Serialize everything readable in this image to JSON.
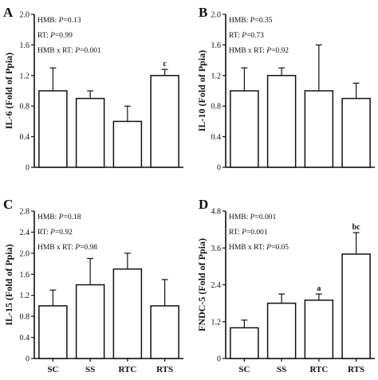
{
  "figure": {
    "x_categories": [
      "SC",
      "SS",
      "RTC",
      "RTS"
    ]
  },
  "chart_data": [
    {
      "type": "bar",
      "panel": "A",
      "ylabel": "IL-6 (Fold of Ppia)",
      "categories": [
        "SC",
        "SS",
        "RTC",
        "RTS"
      ],
      "values": [
        1.0,
        0.9,
        0.6,
        1.2
      ],
      "errors": [
        0.3,
        0.1,
        0.2,
        0.08
      ],
      "sig_labels": [
        "",
        "",
        "",
        "c"
      ],
      "ylim": [
        0,
        2.0
      ],
      "yticks": [
        "0",
        "0.4",
        "0.8",
        "1.2",
        "1.6",
        "2.0"
      ],
      "stats": [
        {
          "prefix": "HMB: ",
          "p": "P",
          "rest": "=0.13"
        },
        {
          "prefix": "RT: ",
          "p": "P",
          "rest": "=0.99"
        },
        {
          "prefix": "HMB x RT: ",
          "p": "P",
          "rest": "=0.001"
        }
      ],
      "show_xlabels": false
    },
    {
      "type": "bar",
      "panel": "B",
      "ylabel": "IL-10 (Fold of Ppia)",
      "categories": [
        "SC",
        "SS",
        "RTC",
        "RTS"
      ],
      "values": [
        1.0,
        1.2,
        1.0,
        0.9
      ],
      "errors": [
        0.3,
        0.1,
        0.6,
        0.2
      ],
      "sig_labels": [
        "",
        "",
        "",
        ""
      ],
      "ylim": [
        0,
        2.0
      ],
      "yticks": [
        "0",
        "0.4",
        "0.8",
        "1.2",
        "1.6",
        "2.0"
      ],
      "stats": [
        {
          "prefix": "HMB: ",
          "p": "P",
          "rest": "=0.35"
        },
        {
          "prefix": "RT: ",
          "p": "P",
          "rest": "=0.73"
        },
        {
          "prefix": "HMB x RT: ",
          "p": "P",
          "rest": "=0.92"
        }
      ],
      "show_xlabels": false
    },
    {
      "type": "bar",
      "panel": "C",
      "ylabel": "IL-15 (Fold of Ppia)",
      "categories": [
        "SC",
        "SS",
        "RTC",
        "RTS"
      ],
      "values": [
        1.0,
        1.4,
        1.7,
        1.0
      ],
      "errors": [
        0.3,
        0.5,
        0.3,
        0.5
      ],
      "sig_labels": [
        "",
        "",
        "",
        ""
      ],
      "ylim": [
        0,
        2.8
      ],
      "yticks": [
        "0",
        "0.4",
        "0.8",
        "1.2",
        "1.6",
        "2.0",
        "2.4",
        "2.8"
      ],
      "stats": [
        {
          "prefix": "HMB: ",
          "p": "P",
          "rest": "=0.18"
        },
        {
          "prefix": "RT: ",
          "p": "P",
          "rest": "=0.92"
        },
        {
          "prefix": "HMB x RT: ",
          "p": "P",
          "rest": "=0.98"
        }
      ],
      "show_xlabels": true
    },
    {
      "type": "bar",
      "panel": "D",
      "ylabel": "FNDC-5 (Fold of Ppia)",
      "categories": [
        "SC",
        "SS",
        "RTC",
        "RTS"
      ],
      "values": [
        1.0,
        1.8,
        1.9,
        3.4
      ],
      "errors": [
        0.25,
        0.3,
        0.2,
        0.7
      ],
      "sig_labels": [
        "",
        "",
        "a",
        "bc"
      ],
      "ylim": [
        0,
        4.8
      ],
      "yticks": [
        "0",
        "1.2",
        "2.4",
        "3.6",
        "4.8"
      ],
      "stats": [
        {
          "prefix": "HMB: ",
          "p": "P",
          "rest": "=0.001"
        },
        {
          "prefix": "RT: ",
          "p": "P",
          "rest": "=0.001"
        },
        {
          "prefix": "HMB x RT: ",
          "p": "P",
          "rest": "=0.05"
        }
      ],
      "show_xlabels": true
    }
  ]
}
